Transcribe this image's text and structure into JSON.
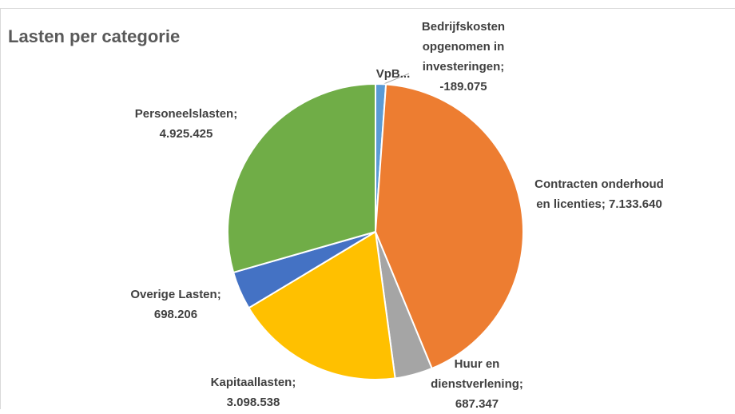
{
  "chart_data": {
    "type": "pie",
    "title": "Lasten per categorie",
    "labels": [
      "VpB...",
      "Bedrijfskosten opgenomen in investeringen; -189.075",
      "Contracten onderhoud en licenties; 7.133.640",
      "Huur en dienstverlening; 687.347",
      "Kapitaallasten; 3.098.538",
      "Overige Lasten; 698.206",
      "Personeelslasten; 4.925.425"
    ],
    "values": [
      0,
      -189075,
      7133640,
      687347,
      3098538,
      698206,
      4925425
    ],
    "colors": [
      "#4472c4",
      "#5b9bd5",
      "#ed7d31",
      "#a5a5a5",
      "#ffc000",
      "#4472c4",
      "#70ad47"
    ]
  }
}
